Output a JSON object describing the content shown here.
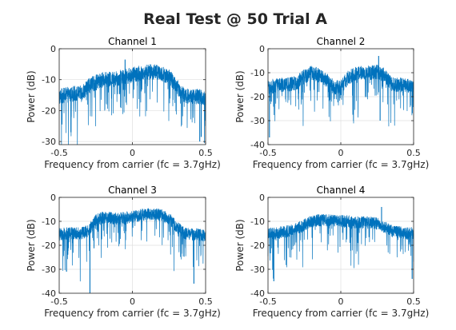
{
  "figure": {
    "title": "Real Test @ 50 Trial A"
  },
  "colors": {
    "trace": "#0072bd",
    "grid": "#dfdfdf",
    "axis": "#262626"
  },
  "chart_data": [
    {
      "type": "line",
      "title": "Channel 1",
      "xlabel": "Frequency from carrier (fc = 3.7gHz)",
      "ylabel": "Power (dB)",
      "xlim": [
        -0.5,
        0.5
      ],
      "ylim": [
        -31,
        0
      ],
      "xticks": [
        -0.5,
        0,
        0.5
      ],
      "xtick_labels": [
        "-0.5",
        "0",
        "0.5"
      ],
      "yticks": [
        0,
        -10,
        -20,
        -30
      ],
      "ytick_labels": [
        "0",
        "-10",
        "-20",
        "-30"
      ],
      "grid": true,
      "series": [
        {
          "envelope_x": [
            -0.5,
            -0.45,
            -0.4,
            -0.35,
            -0.3,
            -0.25,
            -0.2,
            -0.15,
            -0.1,
            -0.05,
            0,
            0.05,
            0.1,
            0.15,
            0.2,
            0.25,
            0.3,
            0.35,
            0.4,
            0.45,
            0.5
          ],
          "envelope_y": [
            -15.5,
            -15,
            -14.5,
            -14.5,
            -12,
            -11,
            -10,
            -10,
            -9.5,
            -9,
            -8.5,
            -8,
            -7.5,
            -7.5,
            -8,
            -9,
            -12,
            -15,
            -15.5,
            -15.5,
            -16
          ],
          "noise_db": 2.5,
          "spikes": [
            {
              "x": -0.05,
              "y": -3.5
            },
            {
              "x": 0.46,
              "y": -30
            },
            {
              "x": 0.47,
              "y": -28.5
            },
            {
              "x": -0.42,
              "y": -27
            }
          ]
        }
      ]
    },
    {
      "type": "line",
      "title": "Channel 2",
      "xlabel": "Frequency from carrier (fc = 3.7gHz)",
      "ylabel": "Power (dB)",
      "xlim": [
        -0.5,
        0.5
      ],
      "ylim": [
        -40,
        0
      ],
      "xticks": [
        -0.5,
        0,
        0.5
      ],
      "xtick_labels": [
        "-0.5",
        "0",
        "0.5"
      ],
      "yticks": [
        0,
        -10,
        -20,
        -30,
        -40
      ],
      "ytick_labels": [
        "0",
        "-10",
        "-20",
        "-30",
        "-40"
      ],
      "grid": true,
      "series": [
        {
          "envelope_x": [
            -0.5,
            -0.45,
            -0.4,
            -0.35,
            -0.3,
            -0.25,
            -0.2,
            -0.15,
            -0.1,
            -0.05,
            0,
            0.05,
            0.1,
            0.15,
            0.2,
            0.25,
            0.3,
            0.35,
            0.4,
            0.45,
            0.5
          ],
          "envelope_y": [
            -16,
            -15.5,
            -15,
            -15,
            -14,
            -11.5,
            -10,
            -11,
            -13,
            -16,
            -16,
            -12,
            -10.5,
            -10,
            -10,
            -9.5,
            -11,
            -15,
            -15,
            -15.5,
            -16
          ],
          "noise_db": 3,
          "spikes": [
            {
              "x": 0.26,
              "y": -3
            },
            {
              "x": -0.49,
              "y": -37
            },
            {
              "x": 0.27,
              "y": -30
            }
          ]
        }
      ]
    },
    {
      "type": "line",
      "title": "Channel 3",
      "xlabel": "Frequency from carrier (fc = 3.7gHz)",
      "ylabel": "Power (dB)",
      "xlim": [
        -0.5,
        0.5
      ],
      "ylim": [
        -40,
        0
      ],
      "xticks": [
        -0.5,
        0,
        0.5
      ],
      "xtick_labels": [
        "-0.5",
        "0",
        "0.5"
      ],
      "yticks": [
        0,
        -10,
        -20,
        -30,
        -40
      ],
      "ytick_labels": [
        "0",
        "-10",
        "-20",
        "-30",
        "-40"
      ],
      "grid": true,
      "series": [
        {
          "envelope_x": [
            -0.5,
            -0.45,
            -0.4,
            -0.35,
            -0.3,
            -0.25,
            -0.2,
            -0.15,
            -0.1,
            -0.05,
            0,
            0.05,
            0.1,
            0.15,
            0.2,
            0.25,
            0.3,
            0.35,
            0.4,
            0.45,
            0.5
          ],
          "envelope_y": [
            -15.5,
            -15,
            -15,
            -15,
            -14,
            -9.5,
            -8.5,
            -8.5,
            -9,
            -8.5,
            -8,
            -7.5,
            -7,
            -7,
            -7.5,
            -9,
            -12,
            -15,
            -15.5,
            -15.5,
            -16
          ],
          "noise_db": 2.5,
          "spikes": [
            {
              "x": -0.29,
              "y": -40
            },
            {
              "x": 0.42,
              "y": -36
            },
            {
              "x": -0.45,
              "y": -31
            }
          ]
        }
      ]
    },
    {
      "type": "line",
      "title": "Channel 4",
      "xlabel": "Frequency from carrier (fc = 3.7gHz)",
      "ylabel": "Power (dB)",
      "xlim": [
        -0.5,
        0.5
      ],
      "ylim": [
        -40,
        0
      ],
      "xticks": [
        -0.5,
        0,
        0.5
      ],
      "xtick_labels": [
        "-0.5",
        "0",
        "0.5"
      ],
      "yticks": [
        0,
        -10,
        -20,
        -30,
        -40
      ],
      "ytick_labels": [
        "0",
        "-10",
        "-20",
        "-30",
        "-40"
      ],
      "grid": true,
      "series": [
        {
          "envelope_x": [
            -0.5,
            -0.45,
            -0.4,
            -0.35,
            -0.3,
            -0.25,
            -0.2,
            -0.15,
            -0.1,
            -0.05,
            0,
            0.05,
            0.1,
            0.15,
            0.2,
            0.25,
            0.3,
            0.35,
            0.4,
            0.45,
            0.5
          ],
          "envelope_y": [
            -15,
            -15,
            -14.5,
            -14,
            -13,
            -11.5,
            -10,
            -9.5,
            -9.5,
            -9.5,
            -10,
            -10,
            -10.5,
            -10.5,
            -10.5,
            -11,
            -12.5,
            -14,
            -14.5,
            -15,
            -15
          ],
          "noise_db": 2.5,
          "spikes": [
            {
              "x": 0.28,
              "y": -4
            },
            {
              "x": -0.46,
              "y": -35
            },
            {
              "x": 0.49,
              "y": -34
            }
          ]
        }
      ]
    }
  ]
}
